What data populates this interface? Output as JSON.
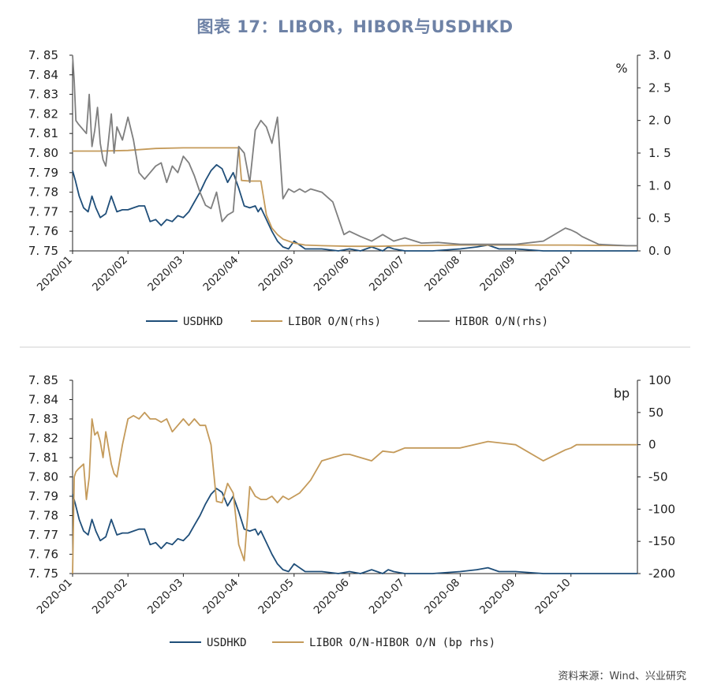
{
  "title": "图表 17：LIBOR，HIBOR与USDHKD",
  "source": "资料来源：Wind、兴业研究",
  "colors": {
    "usdhkd": "#1f4e79",
    "libor": "#c49a5a",
    "hibor": "#7f7f7f",
    "spread": "#c49a5a"
  },
  "chart_data": [
    {
      "type": "line",
      "title": "",
      "x_labels": [
        "2020/01",
        "2020/02",
        "2020/03",
        "2020/04",
        "2020/05",
        "2020/06",
        "2020/07",
        "2020/08",
        "2020/09",
        "2020/10"
      ],
      "xlim": [
        0,
        10.2
      ],
      "left_axis": {
        "ylim": [
          7.75,
          7.85
        ],
        "ticks": [
          "7.85",
          "7.84",
          "7.83",
          "7.82",
          "7.81",
          "7.80",
          "7.79",
          "7.78",
          "7.77",
          "7.76",
          "7.75"
        ]
      },
      "right_axis": {
        "ylim": [
          0,
          3
        ],
        "unit": "%",
        "ticks": [
          "3.0",
          "2.5",
          "2.0",
          "1.5",
          "1.0",
          "0.5",
          "0.0"
        ]
      },
      "series": [
        {
          "name": "USDHKD",
          "axis": "left",
          "key": "usdhkd",
          "x": [
            0,
            0.05,
            0.12,
            0.2,
            0.28,
            0.35,
            0.42,
            0.5,
            0.6,
            0.7,
            0.8,
            0.9,
            1.0,
            1.1,
            1.2,
            1.3,
            1.4,
            1.5,
            1.6,
            1.7,
            1.8,
            1.9,
            2.0,
            2.1,
            2.2,
            2.3,
            2.4,
            2.5,
            2.6,
            2.7,
            2.8,
            2.9,
            3.0,
            3.1,
            3.2,
            3.3,
            3.35,
            3.4,
            3.5,
            3.6,
            3.7,
            3.8,
            3.9,
            4.0,
            4.2,
            4.5,
            4.8,
            5.0,
            5.2,
            5.4,
            5.6,
            5.7,
            5.8,
            6.0,
            6.5,
            7.0,
            7.3,
            7.5,
            7.7,
            8.0,
            8.5,
            9.0,
            9.5,
            10.0,
            10.2
          ],
          "y": [
            7.791,
            7.786,
            7.778,
            7.772,
            7.77,
            7.778,
            7.772,
            7.767,
            7.769,
            7.778,
            7.77,
            7.771,
            7.771,
            7.772,
            7.773,
            7.773,
            7.765,
            7.766,
            7.763,
            7.766,
            7.765,
            7.768,
            7.767,
            7.77,
            7.775,
            7.78,
            7.786,
            7.791,
            7.794,
            7.792,
            7.785,
            7.79,
            7.782,
            7.773,
            7.772,
            7.773,
            7.77,
            7.772,
            7.766,
            7.76,
            7.755,
            7.752,
            7.751,
            7.755,
            7.751,
            7.751,
            7.75,
            7.751,
            7.75,
            7.752,
            7.75,
            7.752,
            7.751,
            7.75,
            7.75,
            7.751,
            7.752,
            7.753,
            7.751,
            7.751,
            7.75,
            7.75,
            7.75,
            7.75,
            7.75
          ]
        },
        {
          "name": "LIBOR O/N(rhs)",
          "axis": "right",
          "key": "libor",
          "x": [
            0,
            0.5,
            1.0,
            1.5,
            2.0,
            2.5,
            3.0,
            3.05,
            3.2,
            3.4,
            3.5,
            3.6,
            3.7,
            3.8,
            4.0,
            4.2,
            4.5,
            5.0,
            5.5,
            6.0,
            7.0,
            8.0,
            9.0,
            10.0,
            10.2
          ],
          "y": [
            1.53,
            1.53,
            1.54,
            1.57,
            1.58,
            1.58,
            1.58,
            1.08,
            1.07,
            1.07,
            0.55,
            0.35,
            0.25,
            0.18,
            0.12,
            0.09,
            0.08,
            0.07,
            0.07,
            0.08,
            0.09,
            0.09,
            0.09,
            0.08,
            0.08
          ]
        },
        {
          "name": "HIBOR O/N(rhs)",
          "axis": "right",
          "key": "hibor",
          "x": [
            0,
            0.03,
            0.06,
            0.1,
            0.2,
            0.25,
            0.3,
            0.35,
            0.4,
            0.45,
            0.5,
            0.55,
            0.6,
            0.7,
            0.75,
            0.8,
            0.9,
            1.0,
            1.1,
            1.2,
            1.3,
            1.4,
            1.5,
            1.6,
            1.7,
            1.8,
            1.9,
            2.0,
            2.1,
            2.2,
            2.3,
            2.4,
            2.5,
            2.6,
            2.7,
            2.8,
            2.9,
            3.0,
            3.1,
            3.2,
            3.3,
            3.4,
            3.5,
            3.6,
            3.7,
            3.8,
            3.9,
            4.0,
            4.1,
            4.2,
            4.3,
            4.5,
            4.7,
            4.9,
            5.0,
            5.2,
            5.4,
            5.6,
            5.8,
            6.0,
            6.3,
            6.6,
            7.0,
            7.5,
            8.0,
            8.5,
            8.9,
            9.0,
            9.1,
            9.2,
            9.5,
            10.0,
            10.2
          ],
          "y": [
            3.0,
            2.6,
            2.0,
            1.95,
            1.85,
            1.8,
            2.4,
            1.6,
            1.85,
            2.2,
            1.65,
            1.4,
            1.3,
            2.1,
            1.5,
            1.9,
            1.7,
            2.05,
            1.7,
            1.2,
            1.1,
            1.2,
            1.3,
            1.35,
            1.05,
            1.3,
            1.2,
            1.45,
            1.35,
            1.15,
            0.9,
            0.7,
            0.65,
            0.9,
            0.45,
            0.55,
            0.6,
            1.6,
            1.5,
            1.05,
            1.85,
            2.0,
            1.9,
            1.65,
            2.05,
            0.8,
            0.95,
            0.9,
            0.95,
            0.9,
            0.95,
            0.9,
            0.75,
            0.25,
            0.3,
            0.22,
            0.15,
            0.25,
            0.15,
            0.2,
            0.12,
            0.13,
            0.1,
            0.1,
            0.1,
            0.15,
            0.35,
            0.32,
            0.28,
            0.22,
            0.1,
            0.08,
            0.08
          ]
        }
      ]
    },
    {
      "type": "line",
      "title": "",
      "x_labels": [
        "2020-01",
        "2020-02",
        "2020-03",
        "2020-04",
        "2020-05",
        "2020-06",
        "2020-07",
        "2020-08",
        "2020-09",
        "2020-10"
      ],
      "xlim": [
        0,
        10.2
      ],
      "left_axis": {
        "ylim": [
          7.75,
          7.85
        ],
        "ticks": [
          "7.85",
          "7.84",
          "7.83",
          "7.82",
          "7.81",
          "7.80",
          "7.79",
          "7.78",
          "7.77",
          "7.76",
          "7.75"
        ]
      },
      "right_axis": {
        "ylim": [
          -200,
          100
        ],
        "unit": "bp",
        "ticks": [
          "100",
          "50",
          "0",
          "-50",
          "-100",
          "-150",
          "-200"
        ]
      },
      "series": [
        {
          "name": "USDHKD",
          "axis": "left",
          "key": "usdhkd",
          "x": [
            0,
            0.05,
            0.12,
            0.2,
            0.28,
            0.35,
            0.42,
            0.5,
            0.6,
            0.7,
            0.8,
            0.9,
            1.0,
            1.1,
            1.2,
            1.3,
            1.4,
            1.5,
            1.6,
            1.7,
            1.8,
            1.9,
            2.0,
            2.1,
            2.2,
            2.3,
            2.4,
            2.5,
            2.6,
            2.7,
            2.8,
            2.9,
            3.0,
            3.1,
            3.2,
            3.3,
            3.35,
            3.4,
            3.5,
            3.6,
            3.7,
            3.8,
            3.9,
            4.0,
            4.2,
            4.5,
            4.8,
            5.0,
            5.2,
            5.4,
            5.6,
            5.7,
            5.8,
            6.0,
            6.5,
            7.0,
            7.3,
            7.5,
            7.7,
            8.0,
            8.5,
            9.0,
            9.5,
            10.0,
            10.2
          ],
          "y": [
            7.791,
            7.786,
            7.778,
            7.772,
            7.77,
            7.778,
            7.772,
            7.767,
            7.769,
            7.778,
            7.77,
            7.771,
            7.771,
            7.772,
            7.773,
            7.773,
            7.765,
            7.766,
            7.763,
            7.766,
            7.765,
            7.768,
            7.767,
            7.77,
            7.775,
            7.78,
            7.786,
            7.791,
            7.794,
            7.792,
            7.785,
            7.79,
            7.782,
            7.773,
            7.772,
            7.773,
            7.77,
            7.772,
            7.766,
            7.76,
            7.755,
            7.752,
            7.751,
            7.755,
            7.751,
            7.751,
            7.75,
            7.751,
            7.75,
            7.752,
            7.75,
            7.752,
            7.751,
            7.75,
            7.75,
            7.751,
            7.752,
            7.753,
            7.751,
            7.751,
            7.75,
            7.75,
            7.75,
            7.75,
            7.75
          ]
        },
        {
          "name": "LIBOR O/N-HIBOR O/N (bp rhs)",
          "axis": "right",
          "key": "spread",
          "x": [
            0,
            0.03,
            0.06,
            0.1,
            0.2,
            0.25,
            0.3,
            0.35,
            0.4,
            0.45,
            0.5,
            0.55,
            0.6,
            0.7,
            0.75,
            0.8,
            0.9,
            1.0,
            1.1,
            1.2,
            1.3,
            1.4,
            1.5,
            1.6,
            1.7,
            1.8,
            1.9,
            2.0,
            2.1,
            2.2,
            2.3,
            2.4,
            2.5,
            2.6,
            2.7,
            2.8,
            2.9,
            3.0,
            3.1,
            3.2,
            3.3,
            3.4,
            3.5,
            3.6,
            3.7,
            3.8,
            3.9,
            4.0,
            4.1,
            4.2,
            4.3,
            4.5,
            4.7,
            4.9,
            5.0,
            5.2,
            5.4,
            5.6,
            5.8,
            6.0,
            6.3,
            6.6,
            7.0,
            7.5,
            8.0,
            8.5,
            8.9,
            9.0,
            9.1,
            9.2,
            9.5,
            10.0,
            10.2
          ],
          "y": [
            -200,
            -50,
            -42,
            -38,
            -30,
            -85,
            -50,
            40,
            15,
            20,
            5,
            -20,
            20,
            -30,
            -45,
            -50,
            0,
            40,
            45,
            40,
            50,
            40,
            40,
            35,
            40,
            20,
            30,
            40,
            30,
            40,
            30,
            30,
            0,
            -88,
            -90,
            -60,
            -75,
            -155,
            -180,
            -65,
            -80,
            -85,
            -85,
            -80,
            -90,
            -80,
            -85,
            -80,
            -75,
            -65,
            -55,
            -25,
            -20,
            -15,
            -15,
            -20,
            -25,
            -10,
            -12,
            -5,
            -5,
            -5,
            -5,
            5,
            0,
            -25,
            -8,
            -5,
            0,
            0,
            0,
            0,
            0
          ]
        }
      ]
    }
  ],
  "legends": [
    {
      "items": [
        {
          "label": "USDHKD",
          "key": "usdhkd"
        },
        {
          "label": "LIBOR O/N(rhs)",
          "key": "libor"
        },
        {
          "label": "HIBOR O/N(rhs)",
          "key": "hibor"
        }
      ]
    },
    {
      "items": [
        {
          "label": "USDHKD",
          "key": "usdhkd"
        },
        {
          "label": "LIBOR O/N-HIBOR O/N (bp rhs)",
          "key": "spread"
        }
      ]
    }
  ]
}
